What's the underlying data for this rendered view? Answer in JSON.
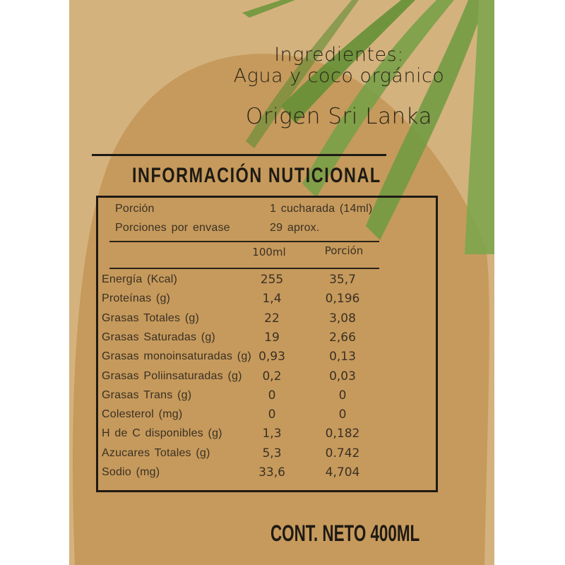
{
  "ingredients_title": "Ingredientes:",
  "ingredients": "Agua y coco orgánico",
  "origin": "Origen Sri Lanka",
  "nutrition_title": "INFORMACIÓN NUTICIONAL",
  "serving": {
    "label": "Porción",
    "value": "1 cucharada (14ml)"
  },
  "servings_per_container": {
    "label": "Porciones por envase",
    "value": "29 aprox."
  },
  "columns": [
    "100ml",
    "Porción"
  ],
  "rows": [
    {
      "name": "Energía (Kcal)",
      "per100": "255",
      "portion": "35,7"
    },
    {
      "name": "Proteínas (g)",
      "per100": "1,4",
      "portion": "0,196"
    },
    {
      "name": "Grasas Totales (g)",
      "per100": "22",
      "portion": "3,08"
    },
    {
      "name": "Grasas Saturadas (g)",
      "per100": "19",
      "portion": "2,66"
    },
    {
      "name": "Grasas monoinsaturadas (g)",
      "per100": "0,93",
      "portion": "0,13"
    },
    {
      "name": "Grasas Poliinsaturadas (g)",
      "per100": "0,2",
      "portion": "0,03"
    },
    {
      "name": "Grasas Trans (g)",
      "per100": "0",
      "portion": "0"
    },
    {
      "name": "Colesterol (mg)",
      "per100": "0",
      "portion": "0"
    },
    {
      "name": "H de C disponibles (g)",
      "per100": "1,3",
      "portion": "0,182"
    },
    {
      "name": "Azucares Totales (g)",
      "per100": "5,3",
      "portion": "0.742"
    },
    {
      "name": "Sodio (mg)",
      "per100": "33,6",
      "portion": "4,704"
    }
  ],
  "net_content": "CONT. NETO 400ML",
  "colors": {
    "background": "#d4b27d",
    "blob": "#c69a5c",
    "leaf": "#6f9a3c",
    "text": "#2a2218"
  }
}
